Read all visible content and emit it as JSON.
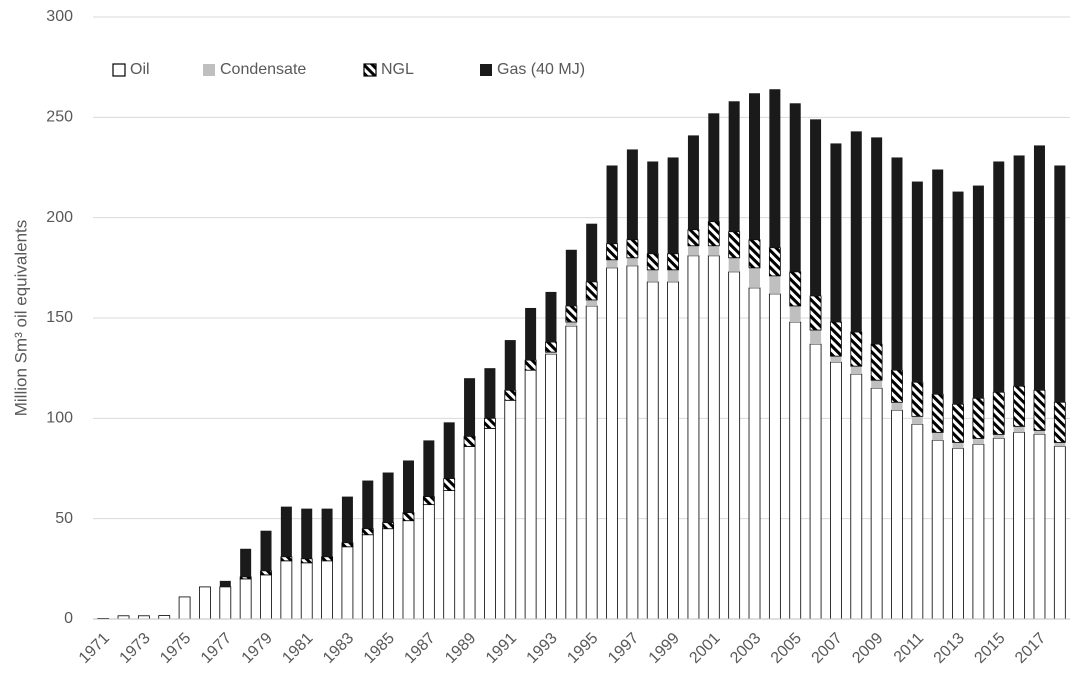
{
  "chart_data": {
    "type": "stacked_bar",
    "ylabel": "Million Sm³ oil equivalents",
    "categories": [
      "1971",
      null,
      "1973",
      null,
      "1975",
      null,
      "1977",
      null,
      "1979",
      null,
      "1981",
      null,
      "1983",
      null,
      "1985",
      null,
      "1987",
      null,
      "1989",
      null,
      "1991",
      null,
      "1993",
      null,
      "1995",
      null,
      "1997",
      null,
      "1999",
      null,
      "2001",
      null,
      "2003",
      null,
      "2005",
      null,
      "2007",
      null,
      "2009",
      null,
      "2011",
      null,
      "2013",
      null,
      "2015",
      null,
      "2017",
      null
    ],
    "series": [
      {
        "name": "Oil",
        "color": "#ffffff",
        "edgecolor": "#000000",
        "values": [
          0.3,
          1.6,
          1.6,
          1.7,
          11,
          16,
          16,
          20,
          22,
          29,
          28,
          29,
          36,
          42,
          45,
          49,
          57,
          64,
          86,
          95,
          109,
          124,
          132,
          146,
          156,
          175,
          176,
          168,
          168,
          181,
          181,
          173,
          165,
          162,
          148,
          137,
          128,
          122,
          115,
          104,
          97,
          89,
          85,
          87,
          90,
          93,
          92,
          86
        ]
      },
      {
        "name": "Condensate",
        "color": "#bfbfbf",
        "values": [
          0,
          0,
          0,
          0,
          0,
          0,
          0,
          0,
          0,
          0,
          0,
          0,
          0,
          0,
          0,
          0,
          0,
          0,
          0,
          0,
          0,
          0,
          1,
          2,
          3,
          4,
          4,
          6,
          6,
          5,
          5,
          7,
          10,
          9,
          8,
          7,
          3,
          4,
          4,
          4,
          4,
          4,
          3,
          3,
          2,
          3,
          2,
          2
        ]
      },
      {
        "name": "NGL",
        "color": "#000000",
        "edgecolor": "#000000",
        "hatch": true,
        "values": [
          0,
          0,
          0,
          0,
          0,
          0,
          0,
          1,
          2,
          2,
          2,
          2,
          2,
          3,
          3,
          4,
          4,
          6,
          5,
          5,
          5,
          5,
          5,
          8,
          9,
          8,
          9,
          8,
          8,
          8,
          12,
          13,
          14,
          14,
          17,
          17,
          17,
          17,
          18,
          16,
          17,
          19,
          19,
          20,
          21,
          20,
          20,
          20
        ]
      },
      {
        "name": "Gas (40 MJ)",
        "color": "#1a1a1a",
        "values": [
          0,
          0,
          0,
          0,
          0,
          0,
          3,
          14,
          20,
          25,
          25,
          24,
          23,
          24,
          25,
          26,
          28,
          28,
          29,
          25,
          25,
          26,
          25,
          28,
          29,
          39,
          45,
          46,
          48,
          47,
          54,
          65,
          73,
          79,
          84,
          88,
          89,
          100,
          103,
          106,
          100,
          112,
          106,
          106,
          115,
          115,
          122,
          118
        ]
      }
    ],
    "ylim": [
      0,
      300
    ],
    "yticks": [
      0,
      50,
      100,
      150,
      200,
      250,
      300
    ],
    "grid": true,
    "legend": "top-left"
  }
}
